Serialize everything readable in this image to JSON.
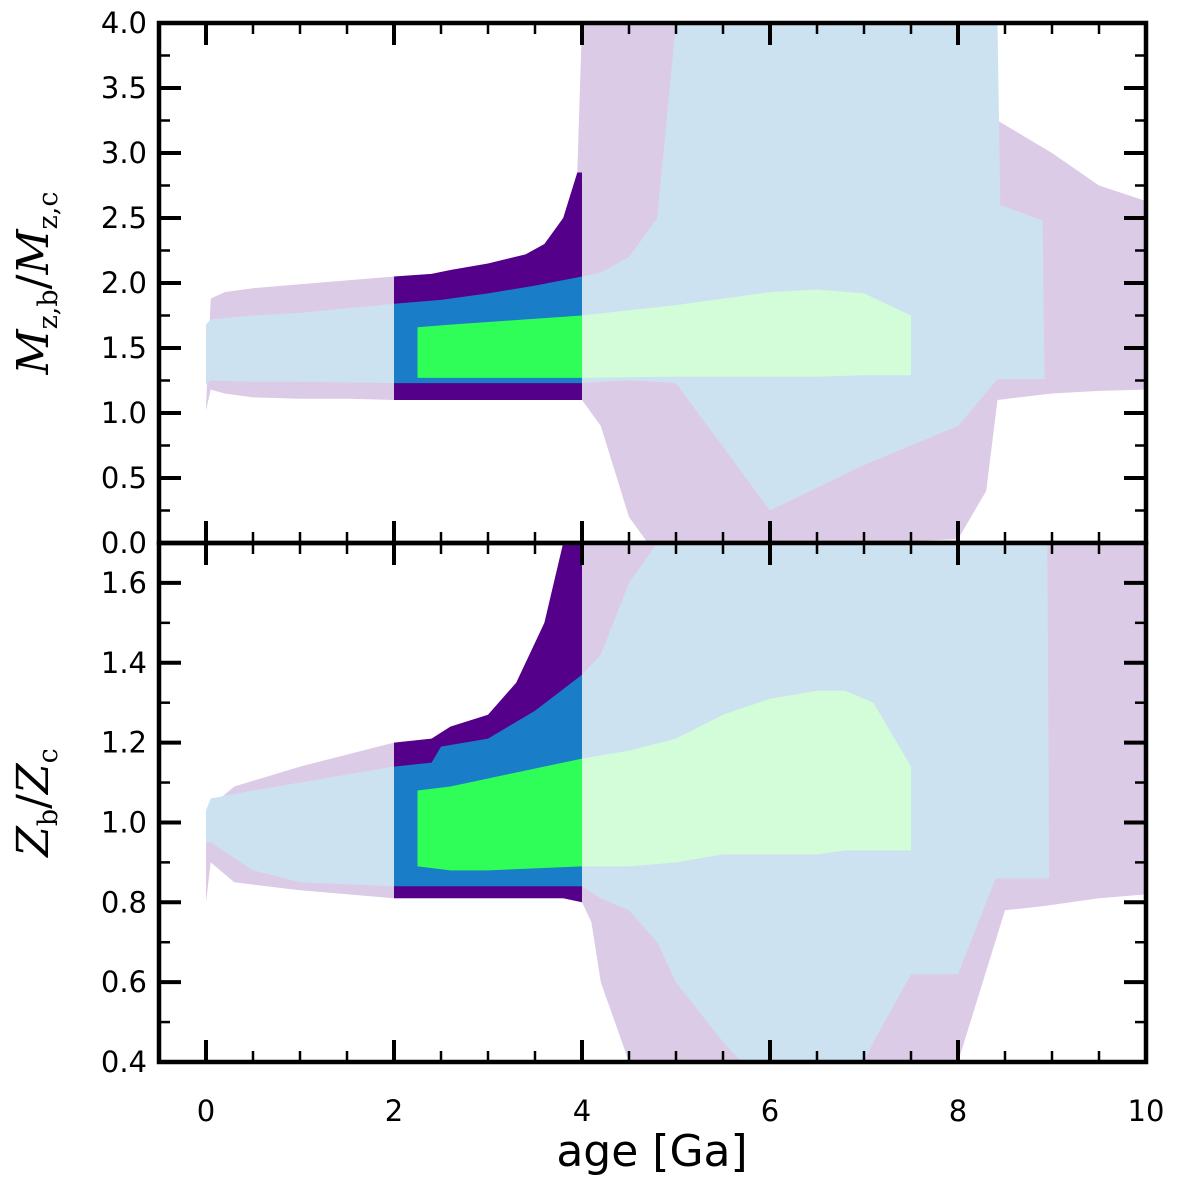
{
  "figure": {
    "xlabel": "age [Ga]",
    "x_tick_labels": [
      "0",
      "2",
      "4",
      "6",
      "8",
      "10"
    ]
  },
  "colors": {
    "band_outer_light": "#dccbe6",
    "band_inner_light": "#cde2f1",
    "band_core_light": "#d2fdd8",
    "band_outer_dark": "#55008a",
    "band_inner_dark": "#1a7dc7",
    "band_core_dark": "#2ffe58",
    "frame": "#000000"
  },
  "chart_data": [
    {
      "type": "area",
      "panel": "top",
      "ylabel": {
        "m1": "M",
        "s1": "z,b",
        "m2": "M",
        "s2": "z,c"
      },
      "xlim": [
        -0.5,
        10
      ],
      "ylim": [
        0,
        4.0
      ],
      "x_ticks": [
        0,
        2,
        4,
        6,
        8,
        10
      ],
      "y_ticks": [
        0.0,
        0.5,
        1.0,
        1.5,
        2.0,
        2.5,
        3.0,
        3.5,
        4.0
      ],
      "y_tick_labels": [
        "0.0",
        "0.5",
        "1.0",
        "1.5",
        "2.0",
        "2.5",
        "3.0",
        "3.5",
        "4.0"
      ],
      "bands": [
        {
          "name": "outer-band-light",
          "color_key": "band_outer_light",
          "x": [
            0.0,
            0.05,
            0.2,
            0.5,
            1.0,
            1.5,
            2.0,
            2.4,
            2.6,
            3.0,
            3.4,
            3.6,
            3.8,
            3.95,
            4.0,
            4.2,
            4.5,
            4.7,
            5.0,
            6.0,
            7.0,
            8.0,
            8.3,
            8.42,
            9.0,
            9.5,
            10.0
          ],
          "upper": [
            1.05,
            1.88,
            1.93,
            1.96,
            1.99,
            2.02,
            2.05,
            2.07,
            2.1,
            2.15,
            2.22,
            2.3,
            2.5,
            2.85,
            4.0,
            4.0,
            4.0,
            4.0,
            4.0,
            4.0,
            4.0,
            4.0,
            4.0,
            3.25,
            3.0,
            2.75,
            2.63
          ],
          "lower": [
            1.02,
            1.18,
            1.15,
            1.12,
            1.11,
            1.11,
            1.1,
            1.1,
            1.1,
            1.1,
            1.1,
            1.1,
            1.1,
            1.1,
            1.1,
            0.9,
            0.2,
            0.0,
            0.0,
            0.0,
            0.0,
            0.03,
            0.4,
            1.1,
            1.15,
            1.17,
            1.18
          ]
        },
        {
          "name": "inner-band-light",
          "color_key": "band_inner_light",
          "x": [
            0.0,
            0.05,
            0.5,
            1.0,
            2.0,
            3.0,
            4.0,
            4.2,
            4.5,
            4.8,
            5.0,
            6.0,
            7.0,
            8.0,
            8.42,
            8.45,
            8.9,
            8.92
          ],
          "upper": [
            1.68,
            1.72,
            1.75,
            1.77,
            1.84,
            1.94,
            2.05,
            2.08,
            2.2,
            2.5,
            4.0,
            4.0,
            4.0,
            4.0,
            4.0,
            2.6,
            2.48,
            1.26
          ],
          "lower": [
            1.22,
            1.25,
            1.24,
            1.24,
            1.23,
            1.23,
            1.23,
            1.24,
            1.25,
            1.24,
            1.23,
            0.25,
            0.6,
            0.9,
            1.26,
            1.26,
            1.26,
            1.26
          ]
        },
        {
          "name": "core-band-light",
          "color_key": "band_core_light",
          "x": [
            2.25,
            3.0,
            4.0,
            5.0,
            6.0,
            6.5,
            7.0,
            7.5
          ],
          "upper": [
            1.66,
            1.7,
            1.75,
            1.83,
            1.93,
            1.95,
            1.92,
            1.75
          ],
          "lower": [
            1.27,
            1.27,
            1.27,
            1.28,
            1.28,
            1.28,
            1.29,
            1.29
          ]
        },
        {
          "name": "outer-band-dark",
          "color_key": "band_outer_dark",
          "x": [
            2.0,
            2.4,
            2.6,
            3.0,
            3.4,
            3.6,
            3.8,
            3.95,
            4.0
          ],
          "upper": [
            2.05,
            2.07,
            2.1,
            2.15,
            2.22,
            2.3,
            2.5,
            2.85,
            2.85
          ],
          "lower": [
            1.1,
            1.1,
            1.1,
            1.1,
            1.1,
            1.1,
            1.1,
            1.1,
            1.1
          ]
        },
        {
          "name": "inner-band-dark",
          "color_key": "band_inner_dark",
          "x": [
            2.0,
            2.5,
            3.0,
            3.5,
            4.0
          ],
          "upper": [
            1.84,
            1.87,
            1.92,
            1.98,
            2.05
          ],
          "lower": [
            1.23,
            1.23,
            1.23,
            1.23,
            1.23
          ]
        },
        {
          "name": "core-band-dark",
          "color_key": "band_core_dark",
          "x": [
            2.25,
            2.6,
            3.0,
            4.0
          ],
          "upper": [
            1.66,
            1.68,
            1.7,
            1.75
          ],
          "lower": [
            1.27,
            1.27,
            1.27,
            1.27
          ]
        }
      ]
    },
    {
      "type": "area",
      "panel": "bottom",
      "ylabel": {
        "m1": "Z",
        "s1": "b",
        "m2": "Z",
        "s2": "c"
      },
      "xlim": [
        -0.5,
        10
      ],
      "ylim": [
        0.4,
        1.7
      ],
      "x_ticks": [
        0,
        2,
        4,
        6,
        8,
        10
      ],
      "y_ticks": [
        0.4,
        0.6,
        0.8,
        1.0,
        1.2,
        1.4,
        1.6
      ],
      "y_tick_labels": [
        "0.4",
        "0.6",
        "0.8",
        "1.0",
        "1.2",
        "1.4",
        "1.6"
      ],
      "bands": [
        {
          "name": "outer-band-light",
          "color_key": "band_outer_light",
          "x": [
            0.0,
            0.05,
            0.3,
            1.0,
            1.5,
            2.0,
            2.4,
            2.6,
            3.0,
            3.3,
            3.6,
            3.8,
            4.0,
            4.1,
            4.2,
            4.5,
            4.8,
            5.0,
            6.0,
            7.0,
            8.0,
            8.5,
            8.9,
            9.5,
            10.0
          ],
          "upper": [
            0.95,
            1.04,
            1.09,
            1.14,
            1.17,
            1.2,
            1.21,
            1.24,
            1.27,
            1.35,
            1.5,
            1.7,
            1.7,
            1.7,
            1.7,
            1.7,
            1.7,
            1.7,
            1.7,
            1.7,
            1.7,
            1.7,
            1.7,
            1.7,
            1.7
          ],
          "lower": [
            0.8,
            0.9,
            0.85,
            0.83,
            0.82,
            0.81,
            0.81,
            0.81,
            0.81,
            0.81,
            0.81,
            0.81,
            0.8,
            0.75,
            0.6,
            0.4,
            0.4,
            0.4,
            0.4,
            0.4,
            0.4,
            0.78,
            0.79,
            0.81,
            0.82
          ]
        },
        {
          "name": "inner-band-light",
          "color_key": "band_inner_light",
          "x": [
            0.0,
            0.05,
            0.5,
            1.0,
            2.0,
            3.0,
            4.0,
            4.2,
            4.5,
            4.8,
            5.0,
            5.5,
            5.7,
            7.0,
            7.1,
            7.5,
            8.0,
            8.4,
            8.95,
            8.97
          ],
          "upper": [
            1.03,
            1.06,
            1.08,
            1.1,
            1.14,
            1.2,
            1.37,
            1.42,
            1.6,
            1.7,
            1.7,
            1.7,
            1.7,
            1.7,
            1.7,
            1.7,
            1.7,
            1.7,
            1.7,
            0.86
          ],
          "lower": [
            0.95,
            0.95,
            0.88,
            0.85,
            0.84,
            0.84,
            0.84,
            0.81,
            0.78,
            0.7,
            0.6,
            0.45,
            0.4,
            0.4,
            0.45,
            0.62,
            0.62,
            0.86,
            0.86,
            0.86
          ]
        },
        {
          "name": "core-band-light",
          "color_key": "band_core_light",
          "x": [
            2.25,
            2.6,
            3.0,
            4.0,
            4.5,
            5.0,
            5.5,
            6.0,
            6.5,
            6.8,
            7.1,
            7.5
          ],
          "upper": [
            1.08,
            1.09,
            1.11,
            1.16,
            1.18,
            1.21,
            1.27,
            1.31,
            1.33,
            1.33,
            1.3,
            1.14
          ],
          "lower": [
            0.89,
            0.88,
            0.88,
            0.89,
            0.89,
            0.9,
            0.92,
            0.92,
            0.92,
            0.93,
            0.93,
            0.93
          ]
        },
        {
          "name": "outer-band-dark",
          "color_key": "band_outer_dark",
          "x": [
            2.0,
            2.4,
            2.6,
            3.0,
            3.3,
            3.6,
            3.8,
            4.0
          ],
          "upper": [
            1.2,
            1.21,
            1.24,
            1.27,
            1.35,
            1.5,
            1.7,
            1.7
          ],
          "lower": [
            0.81,
            0.81,
            0.81,
            0.81,
            0.81,
            0.81,
            0.81,
            0.8
          ]
        },
        {
          "name": "inner-band-dark",
          "color_key": "band_inner_dark",
          "x": [
            2.0,
            2.4,
            2.5,
            3.0,
            3.5,
            4.0
          ],
          "upper": [
            1.14,
            1.15,
            1.19,
            1.21,
            1.28,
            1.37
          ],
          "lower": [
            0.84,
            0.84,
            0.84,
            0.84,
            0.84,
            0.84
          ]
        },
        {
          "name": "core-band-dark",
          "color_key": "band_core_dark",
          "x": [
            2.25,
            2.6,
            3.0,
            4.0
          ],
          "upper": [
            1.08,
            1.09,
            1.11,
            1.16
          ],
          "lower": [
            0.89,
            0.88,
            0.88,
            0.89
          ]
        }
      ]
    }
  ]
}
